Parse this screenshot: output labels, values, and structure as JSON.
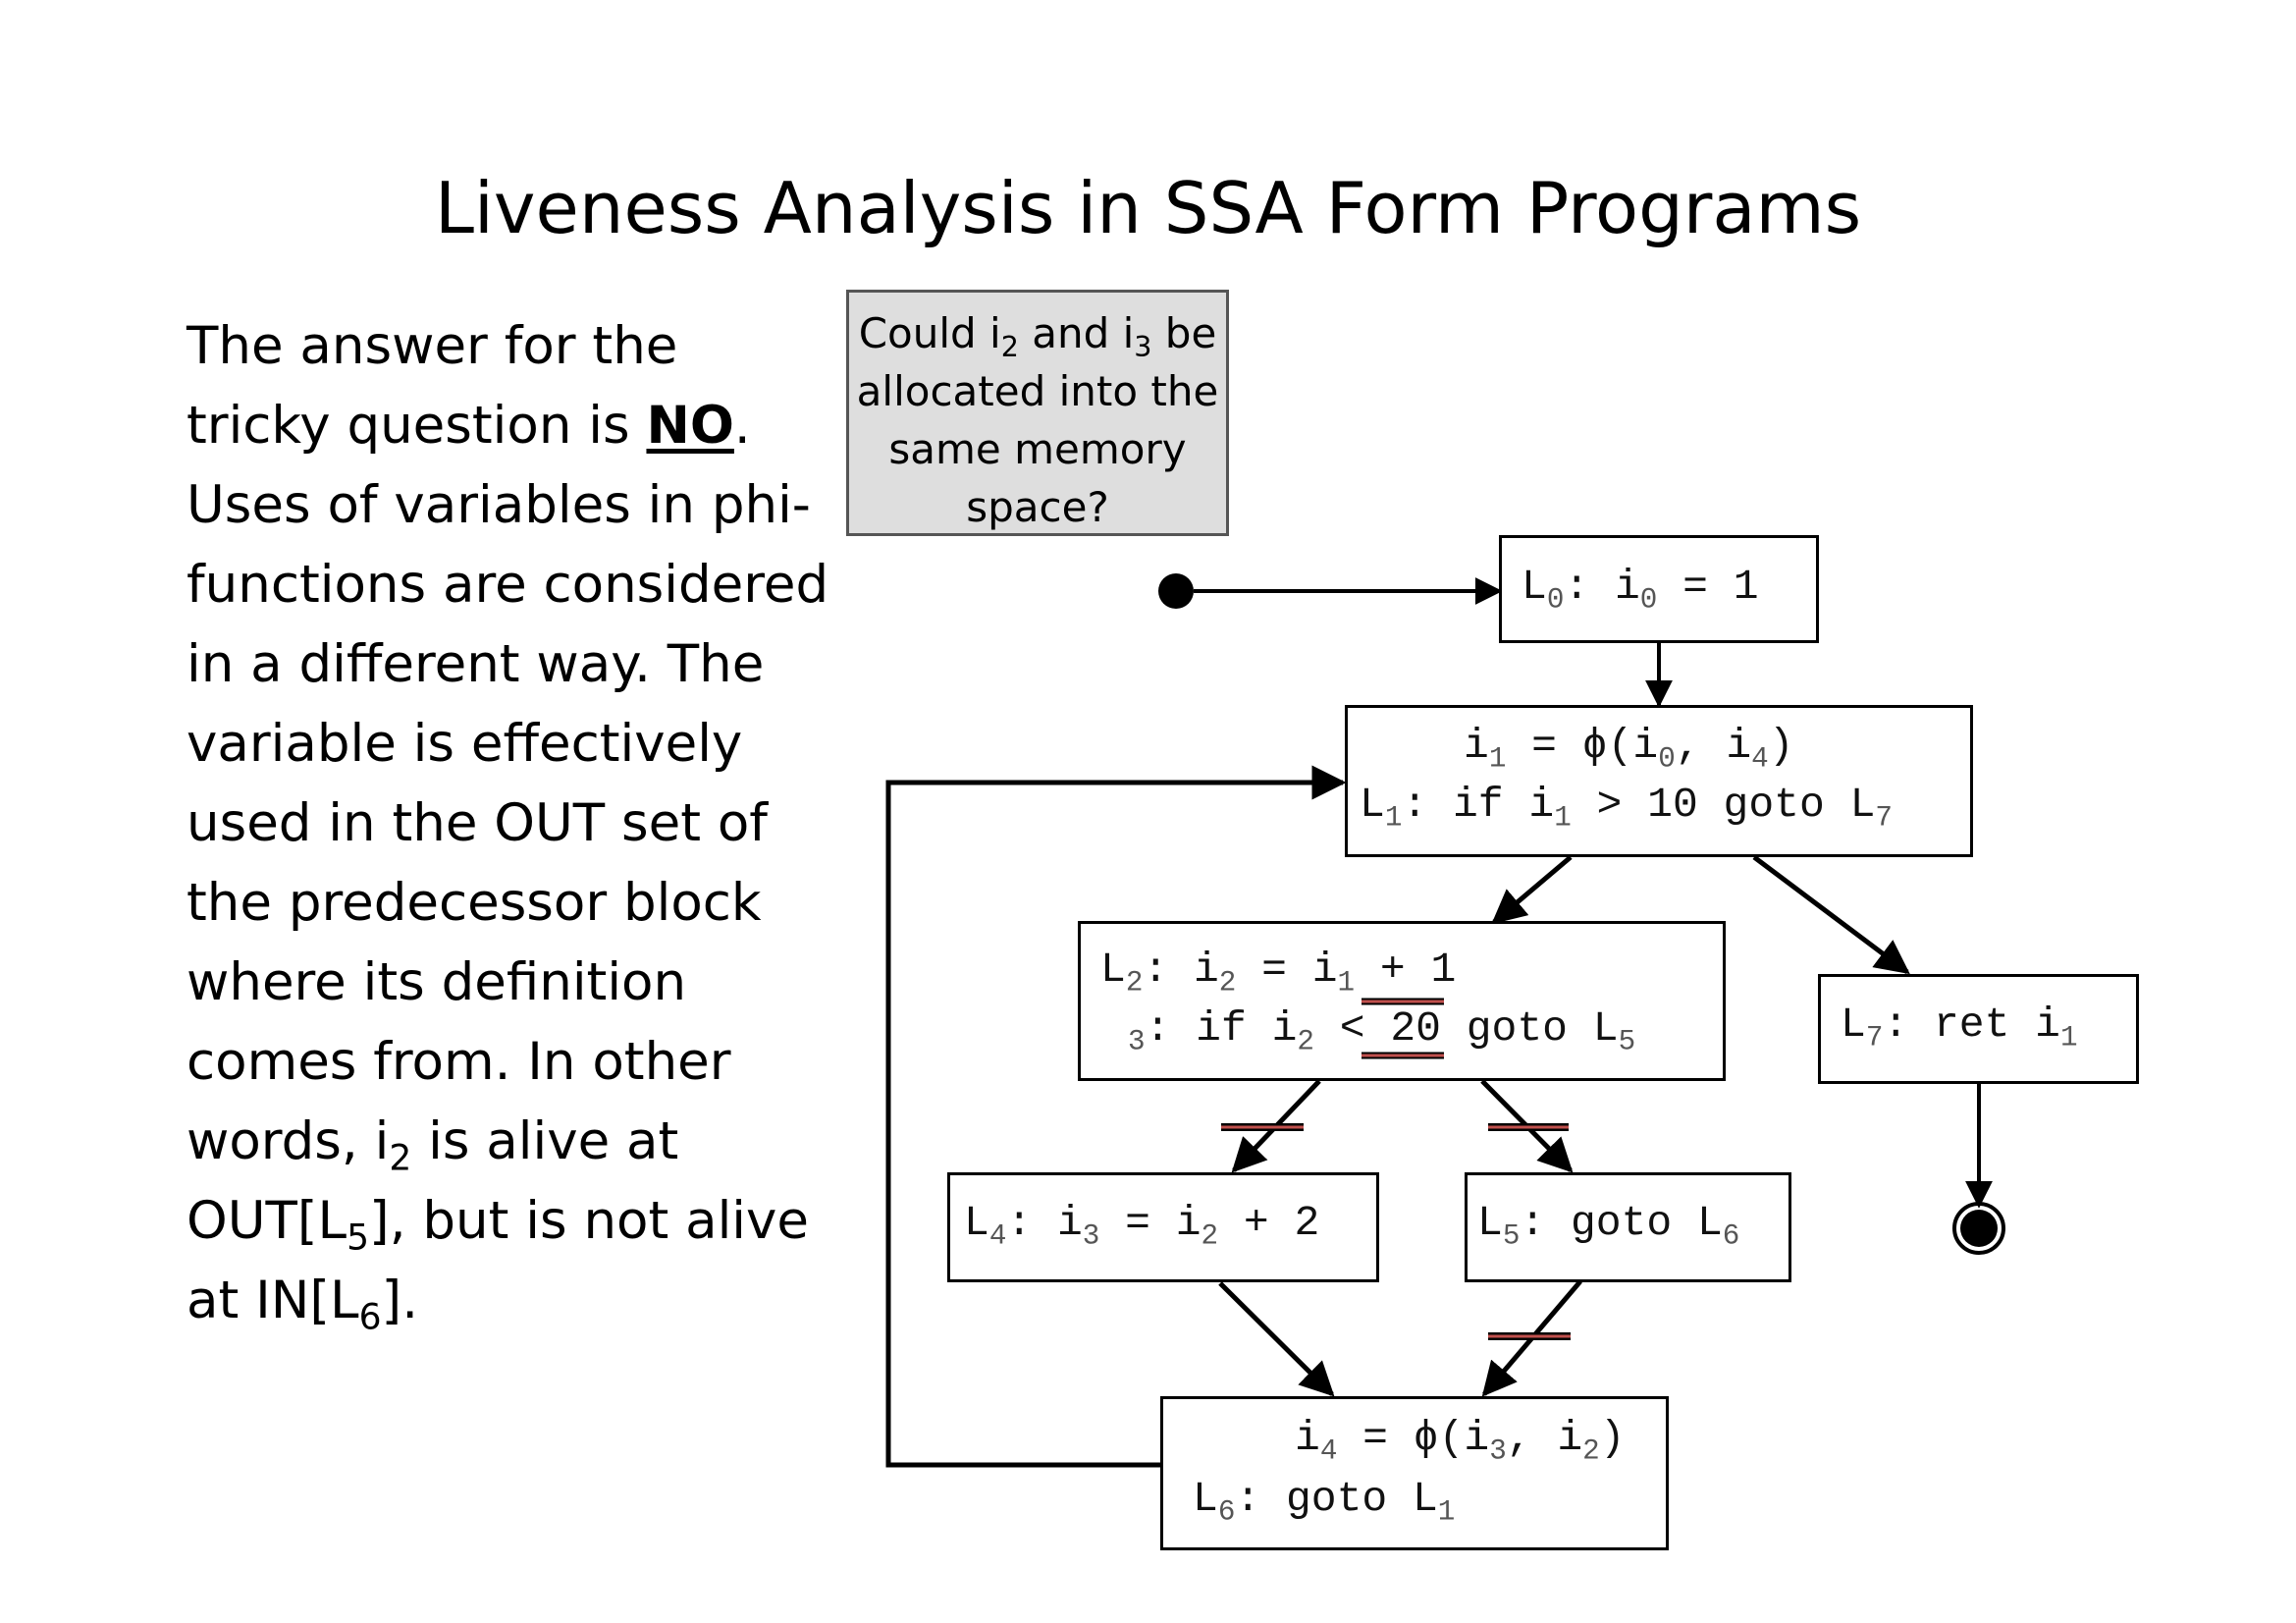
{
  "title": "Liveness Analysis in SSA Form Programs",
  "explanation": {
    "p1": "The answer for the tricky question is ",
    "p1_emph": "NO",
    "p2": ". Uses of variables in phi-functions are considered in a different way. The variable is effectively used in the OUT set of the predecessor block where its definition comes from. In other words, i",
    "sub_a": "2",
    "p3": " is alive at OUT[L",
    "sub_b": "5",
    "p4": "], but is not alive at IN[L",
    "sub_c": "6",
    "p5": "]."
  },
  "question": {
    "t1": "Could i",
    "s1": "2",
    "t2": " and i",
    "s2": "3",
    "t3": " be allocated into the same memory space?"
  },
  "blocks": {
    "L0": {
      "l": "L",
      "s1": "0",
      "t1": ": i",
      "s2": "0",
      "t2": " = 1"
    },
    "L1": {
      "a1": "i",
      "as1": "1",
      "a2": " = ϕ(i",
      "as2": "0",
      "a3": ", i",
      "as3": "4",
      "a4": ")",
      "b1": "L",
      "bs1": "1",
      "b2": ": if i",
      "bs2": "1",
      "b3": " > 10 goto L",
      "bs3": "7"
    },
    "L2": {
      "a1": "L",
      "as1": "2",
      "a2": ": i",
      "as2": "2",
      "a3": " = i",
      "as3": "1",
      "a4": " + 1",
      "bs1": "3",
      "b1": ": if i",
      "bs2": "2",
      "b2": " < 20 goto L",
      "bs3": "5"
    },
    "L7": {
      "l": "L",
      "s1": "7",
      "t1": ": ret i",
      "s2": "1"
    },
    "L4": {
      "l": "L",
      "s1": "4",
      "t1": ": i",
      "s2": "3",
      "t2": " = i",
      "s3": "2",
      "t3": " + 2"
    },
    "L5": {
      "l": "L",
      "s1": "5",
      "t1": ": goto L",
      "s2": "6"
    },
    "L6": {
      "a1": "i",
      "as1": "4",
      "a2": " = ϕ(i",
      "as2": "3",
      "a3": ", i",
      "as3": "2",
      "a4": ")",
      "b1": "L",
      "bs1": "6",
      "b2": ": goto L",
      "bs2": "1"
    }
  },
  "colors": {
    "edge": "#000000",
    "cut_mark": "#c0504d",
    "question_bg": "#dedede"
  }
}
